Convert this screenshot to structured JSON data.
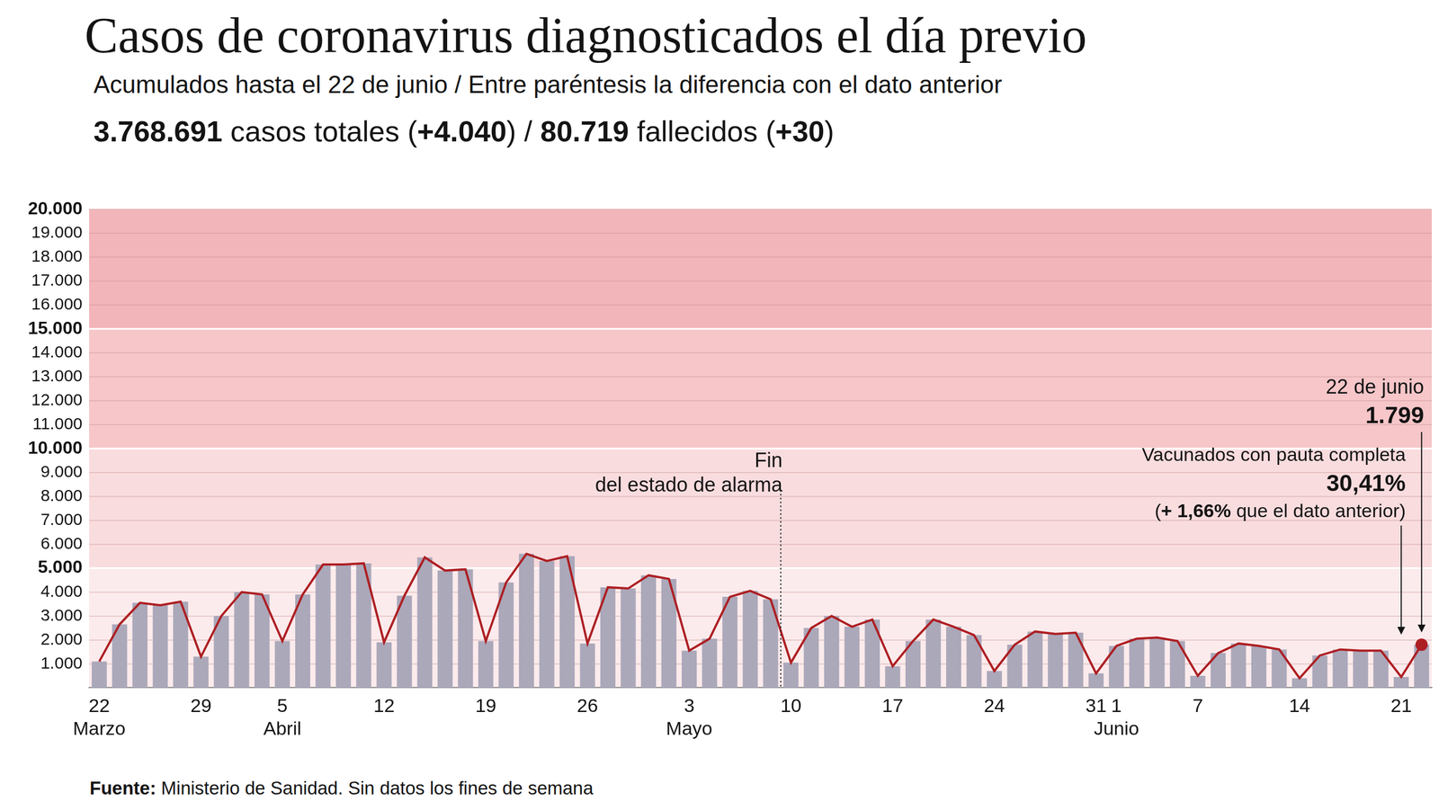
{
  "chart_data": {
    "type": "bar",
    "title": "Casos de coronavirus diagnosticados el día previo",
    "subtitle": "Acumulados hasta el 22 de junio / Entre paréntesis la diferencia con el dato anterior",
    "summary": [
      "3.768.691",
      " casos totales (",
      "+4.040",
      ") / ",
      "80.719",
      " fallecidos (",
      "+30",
      ")"
    ],
    "source": [
      "Fuente:",
      " Ministerio de Sanidad. Sin datos los fines de semana"
    ],
    "categories": [
      [
        "22",
        "Marzo"
      ],
      null,
      null,
      null,
      null,
      "29",
      null,
      null,
      null,
      [
        "5",
        "Abril"
      ],
      null,
      null,
      null,
      null,
      "12",
      null,
      null,
      null,
      null,
      "19",
      null,
      null,
      null,
      null,
      "26",
      null,
      null,
      null,
      null,
      [
        "3",
        "Mayo"
      ],
      null,
      null,
      null,
      null,
      "10",
      null,
      null,
      null,
      null,
      "17",
      null,
      null,
      null,
      null,
      "24",
      null,
      null,
      null,
      null,
      "31",
      [
        "1",
        "Junio"
      ],
      null,
      null,
      null,
      "7",
      null,
      null,
      null,
      null,
      "14",
      null,
      null,
      null,
      null,
      "21",
      null
    ],
    "series": [
      {
        "type": "bar",
        "color": "#aba8ba",
        "values": [
          1100,
          2650,
          3550,
          3450,
          3600,
          1300,
          3000,
          4000,
          3900,
          1950,
          3900,
          5150,
          5150,
          5200,
          1900,
          3850,
          5450,
          4900,
          4950,
          1950,
          4400,
          5600,
          5300,
          5500,
          1850,
          4200,
          4150,
          4700,
          4550,
          1550,
          2050,
          3800,
          4050,
          3700,
          1050,
          2500,
          3000,
          2550,
          2850,
          900,
          1950,
          2850,
          2550,
          2200,
          700,
          1800,
          2350,
          2250,
          2300,
          600,
          1750,
          2050,
          2100,
          1950,
          500,
          1450,
          1850,
          1750,
          1600,
          400,
          1350,
          1600,
          1550,
          1550,
          450,
          1799
        ]
      },
      {
        "type": "line",
        "color": "#ad1f23",
        "marker": "none",
        "values": [
          1100,
          2650,
          3550,
          3450,
          3600,
          1300,
          3000,
          4000,
          3900,
          1950,
          3900,
          5150,
          5150,
          5200,
          1900,
          3850,
          5450,
          4900,
          4950,
          1950,
          4400,
          5600,
          5300,
          5500,
          1850,
          4200,
          4150,
          4700,
          4550,
          1550,
          2050,
          3800,
          4050,
          3700,
          1050,
          2500,
          3000,
          2550,
          2850,
          900,
          1950,
          2850,
          2550,
          2200,
          700,
          1800,
          2350,
          2250,
          2300,
          600,
          1750,
          2050,
          2100,
          1950,
          500,
          1450,
          1850,
          1750,
          1600,
          400,
          1350,
          1600,
          1550,
          1550,
          450,
          1799
        ]
      }
    ],
    "ylim": [
      0,
      20000
    ],
    "yticks": [
      {
        "value": 1000,
        "label": "1.000"
      },
      {
        "value": 2000,
        "label": "2.000"
      },
      {
        "value": 3000,
        "label": "3.000"
      },
      {
        "value": 4000,
        "label": "4.000"
      },
      {
        "value": 5000,
        "label": "5.000"
      },
      {
        "value": 6000,
        "label": "6.000"
      },
      {
        "value": 7000,
        "label": "7.000"
      },
      {
        "value": 8000,
        "label": "8.000"
      },
      {
        "value": 9000,
        "label": "9.000"
      },
      {
        "value": 10000,
        "label": "10.000"
      },
      {
        "value": 11000,
        "label": "11.000"
      },
      {
        "value": 12000,
        "label": "12.000"
      },
      {
        "value": 13000,
        "label": "13.000"
      },
      {
        "value": 14000,
        "label": "14.000"
      },
      {
        "value": 15000,
        "label": "15.000"
      },
      {
        "value": 16000,
        "label": "16.000"
      },
      {
        "value": 17000,
        "label": "17.000"
      },
      {
        "value": 18000,
        "label": "18.000"
      },
      {
        "value": 19000,
        "label": "19.000"
      },
      {
        "value": 20000,
        "label": "20.000"
      }
    ],
    "grid": true,
    "bands": [
      {
        "from": 0,
        "to": 5000,
        "color": "#fcebec"
      },
      {
        "from": 5000,
        "to": 10000,
        "color": "#f9dcde"
      },
      {
        "from": 10000,
        "to": 15000,
        "color": "#f6c6c9"
      },
      {
        "from": 15000,
        "to": 20000,
        "color": "#f2b6ba"
      }
    ],
    "annotations": [
      {
        "x": 33.5,
        "text": [
          "Fin",
          "del estado de alarma"
        ],
        "line_style": "dotted"
      }
    ],
    "highlight": {
      "index": 65,
      "title": "22 de junio",
      "label": "1.799"
    },
    "vaccination": {
      "index": 64,
      "title": "Vacunados con pauta completa",
      "value_label": "30,41%",
      "note": [
        "(",
        "+ 1,66%",
        " que el dato anterior)"
      ]
    }
  }
}
